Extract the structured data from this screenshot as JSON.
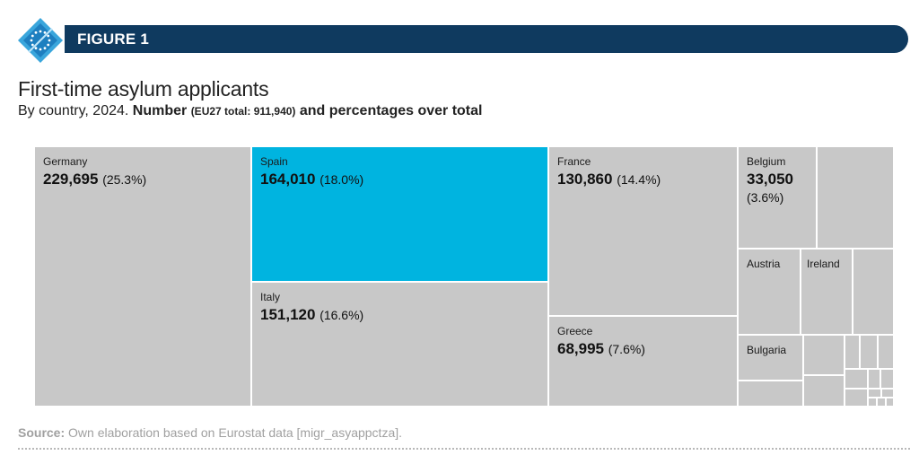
{
  "figure_label": "FIGURE 1",
  "title": "First-time asylum applicants",
  "subtitle": {
    "lead": "By country, 2024. ",
    "bold1": "Number ",
    "small": "(EU27 total: 911,940)",
    "bold2": " and percentages over total"
  },
  "source": {
    "label": "Source:",
    "text": " Own elaboration based on Eurostat data [migr_asyappctza]."
  },
  "colors": {
    "banner": "#0f3a5f",
    "highlight": "#00b4e0",
    "tile": "#c8c8c8"
  },
  "chart_data": {
    "type": "treemap",
    "title": "First-time asylum applicants",
    "total": 911940,
    "items": [
      {
        "name": "Germany",
        "value": 229695,
        "value_label": "229,695",
        "pct": "(25.3%)"
      },
      {
        "name": "Spain",
        "value": 164010,
        "value_label": "164,010",
        "pct": "(18.0%)",
        "highlight": true
      },
      {
        "name": "Italy",
        "value": 151120,
        "value_label": "151,120",
        "pct": "(16.6%)"
      },
      {
        "name": "France",
        "value": 130860,
        "value_label": "130,860",
        "pct": "(14.4%)"
      },
      {
        "name": "Greece",
        "value": 68995,
        "value_label": "68,995",
        "pct": "(7.6%)"
      },
      {
        "name": "Belgium",
        "value": 33050,
        "value_label": "33,050",
        "pct": "(3.6%)"
      },
      {
        "name": "Austria"
      },
      {
        "name": "Ireland"
      },
      {
        "name": "Bulgaria"
      }
    ]
  }
}
